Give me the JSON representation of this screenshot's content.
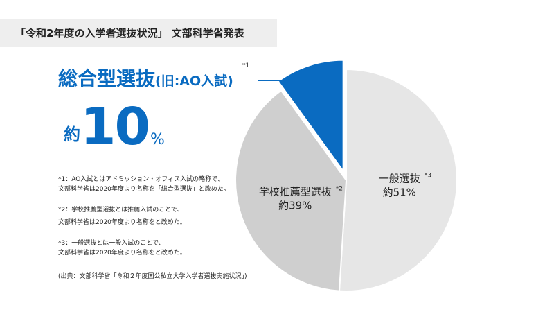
{
  "header": {
    "title": "「令和2年度の入学者選抜状況」 文部科学省発表"
  },
  "headline": {
    "main": "総合型選抜",
    "sub": "(旧:AO入試)",
    "note": "*1"
  },
  "highlight": {
    "prefix": "約",
    "value": "10",
    "unit": "%"
  },
  "footnotes": [
    {
      "lines": [
        "*1：AO入試とはアドミッション・オフィス入試の略称で、",
        "文部科学省は2020年度より名称を「総合型選抜」と改めた。"
      ]
    },
    {
      "lines": [
        "*2：学校推薦型選抜とは推薦入試のことで、",
        "文部科学省は2020年度より名称をと改めた。"
      ]
    },
    {
      "lines": [
        "*3：一般選抜とは一般入試のことで、",
        "文部科学省は2020年度より名称をと改めた。"
      ]
    }
  ],
  "source": "(出典：文部科学省「令和２年度国公私立大学入学者選抜実施状況」)",
  "colors": {
    "accent": "#0a6bc1",
    "general": "#e6e6e6",
    "recommend": "#cfcfcf",
    "header_bg": "#eeeeee"
  },
  "chart_data": {
    "type": "pie",
    "slices": [
      {
        "name": "一般選抜",
        "note": "*3",
        "label": "約51%",
        "value": 51,
        "color": "#e6e6e6"
      },
      {
        "name": "学校推薦型選抜",
        "note": "*2",
        "label": "約39%",
        "value": 39,
        "color": "#cfcfcf"
      },
      {
        "name": "総合型選抜",
        "note": "*1",
        "label": "",
        "value": 10,
        "color": "#0a6bc1",
        "exploded": true
      }
    ]
  }
}
